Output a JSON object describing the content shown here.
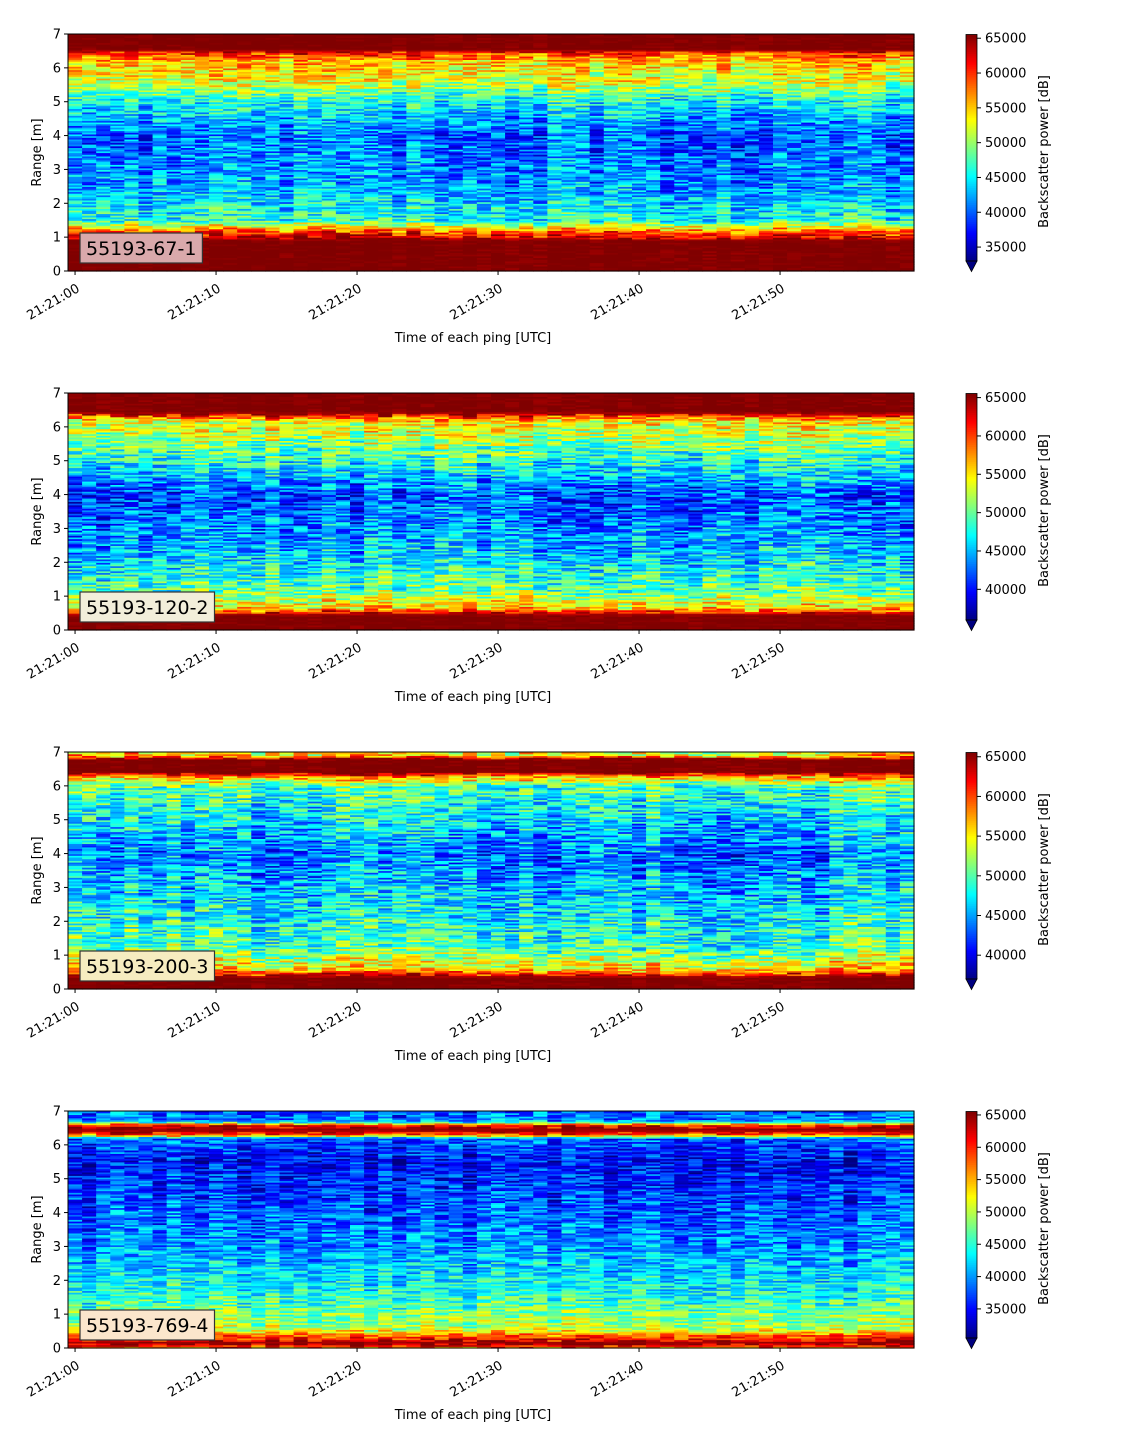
{
  "chart_data": [
    {
      "type": "heatmap",
      "label": "55193-67-1",
      "label_box_color": "#d9a9ab",
      "xlabel": "Time of each ping [UTC]",
      "ylabel": "Range [m]",
      "colorbar_label": "Backscatter power [dB]",
      "x_start": "21:21:00",
      "x_end": "21:21:59",
      "ylim": [
        0,
        7
      ],
      "x_ticks": [
        "21:21:00",
        "21:21:10",
        "21:21:20",
        "21:21:30",
        "21:21:40",
        "21:21:50"
      ],
      "y_ticks": [
        "0",
        "1",
        "2",
        "3",
        "4",
        "5",
        "6",
        "7"
      ],
      "clim": [
        33000,
        65535
      ],
      "colorbar_ticks": [
        "35000",
        "40000",
        "45000",
        "50000",
        "55000",
        "60000",
        "65000"
      ],
      "colorbar_extend": "min",
      "colormap": "jet",
      "profile": [
        [
          0.0,
          65535
        ],
        [
          0.9,
          65535
        ],
        [
          1.2,
          58000
        ],
        [
          1.5,
          46000
        ],
        [
          2.5,
          42000
        ],
        [
          4.0,
          40000
        ],
        [
          5.0,
          45000
        ],
        [
          5.6,
          52000
        ],
        [
          6.2,
          55000
        ],
        [
          6.45,
          60000
        ],
        [
          6.55,
          65535
        ],
        [
          7.0,
          65535
        ]
      ]
    },
    {
      "type": "heatmap",
      "label": "55193-120-2",
      "label_box_color": "#f2eeda",
      "xlabel": "Time of each ping [UTC]",
      "ylabel": "Range [m]",
      "colorbar_label": "Backscatter power [dB]",
      "x_start": "21:21:00",
      "x_end": "21:21:59",
      "ylim": [
        0,
        7
      ],
      "x_ticks": [
        "21:21:00",
        "21:21:10",
        "21:21:20",
        "21:21:30",
        "21:21:40",
        "21:21:50"
      ],
      "y_ticks": [
        "0",
        "1",
        "2",
        "3",
        "4",
        "5",
        "6",
        "7"
      ],
      "clim": [
        36000,
        65535
      ],
      "colorbar_ticks": [
        "40000",
        "45000",
        "50000",
        "55000",
        "60000",
        "65000"
      ],
      "colorbar_extend": "min",
      "colormap": "jet",
      "profile": [
        [
          0.0,
          65535
        ],
        [
          0.45,
          65535
        ],
        [
          0.65,
          56000
        ],
        [
          1.2,
          50000
        ],
        [
          2.5,
          45000
        ],
        [
          4.0,
          42000
        ],
        [
          5.0,
          48000
        ],
        [
          5.8,
          53000
        ],
        [
          6.2,
          55000
        ],
        [
          6.35,
          62000
        ],
        [
          6.45,
          65535
        ],
        [
          7.0,
          65535
        ]
      ]
    },
    {
      "type": "heatmap",
      "label": "55193-200-3",
      "label_box_color": "#f6ecc0",
      "xlabel": "Time of each ping [UTC]",
      "ylabel": "Range [m]",
      "colorbar_label": "Backscatter power [dB]",
      "x_start": "21:21:00",
      "x_end": "21:21:59",
      "ylim": [
        0,
        7
      ],
      "x_ticks": [
        "21:21:00",
        "21:21:10",
        "21:21:20",
        "21:21:30",
        "21:21:40",
        "21:21:50"
      ],
      "y_ticks": [
        "0",
        "1",
        "2",
        "3",
        "4",
        "5",
        "6",
        "7"
      ],
      "clim": [
        37000,
        65535
      ],
      "colorbar_ticks": [
        "40000",
        "45000",
        "50000",
        "55000",
        "60000",
        "65000"
      ],
      "colorbar_extend": "min",
      "colormap": "jet",
      "profile": [
        [
          0.0,
          65535
        ],
        [
          0.35,
          65535
        ],
        [
          0.6,
          56000
        ],
        [
          1.2,
          50000
        ],
        [
          2.5,
          47000
        ],
        [
          4.0,
          44000
        ],
        [
          5.0,
          47000
        ],
        [
          6.0,
          50000
        ],
        [
          6.3,
          58000
        ],
        [
          6.4,
          65535
        ],
        [
          6.8,
          65535
        ],
        [
          6.9,
          56000
        ],
        [
          7.0,
          55000
        ]
      ]
    },
    {
      "type": "heatmap",
      "label": "55193-769-4",
      "label_box_color": "#fbe6cc",
      "xlabel": "Time of each ping [UTC]",
      "ylabel": "Range [m]",
      "colorbar_label": "Backscatter power [dB]",
      "x_start": "21:21:00",
      "x_end": "21:21:59",
      "ylim": [
        0,
        7
      ],
      "x_ticks": [
        "21:21:00",
        "21:21:10",
        "21:21:20",
        "21:21:30",
        "21:21:40",
        "21:21:50"
      ],
      "y_ticks": [
        "0",
        "1",
        "2",
        "3",
        "4",
        "5",
        "6",
        "7"
      ],
      "clim": [
        30500,
        65535
      ],
      "colorbar_ticks": [
        "35000",
        "40000",
        "45000",
        "50000",
        "55000",
        "60000",
        "65000"
      ],
      "colorbar_extend": "min",
      "colormap": "jet",
      "profile": [
        [
          0.0,
          56000
        ],
        [
          0.15,
          65535
        ],
        [
          0.3,
          60000
        ],
        [
          0.6,
          50000
        ],
        [
          1.5,
          45000
        ],
        [
          3.0,
          40000
        ],
        [
          4.5,
          37000
        ],
        [
          5.5,
          35000
        ],
        [
          6.2,
          38000
        ],
        [
          6.3,
          57000
        ],
        [
          6.45,
          65535
        ],
        [
          6.6,
          60000
        ],
        [
          6.7,
          40000
        ],
        [
          7.0,
          38000
        ]
      ]
    }
  ]
}
